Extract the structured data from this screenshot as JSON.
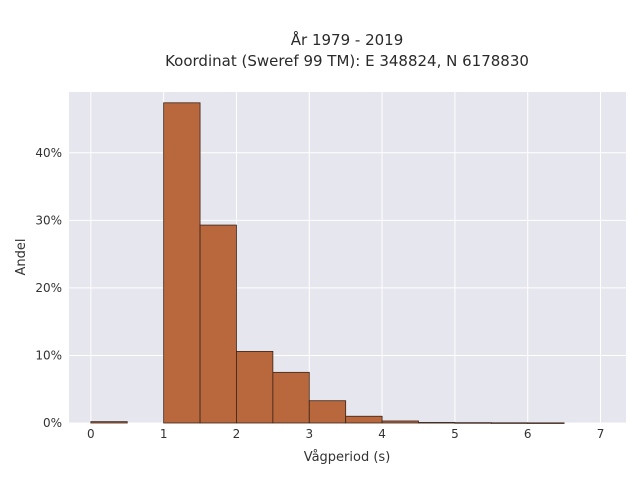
{
  "colors": {
    "plot_background": "#e6e6ee",
    "grid": "#ffffff",
    "bar_fill": "#b9673c",
    "bar_stroke": "#3a2418"
  },
  "chart_data": {
    "type": "bar",
    "title_lines": [
      "År 1979 - 2019",
      "Koordinat (Sweref 99 TM): E 348824, N 6178830"
    ],
    "xlabel": "Vågperiod (s)",
    "ylabel": "Andel",
    "xlim": [
      -0.3,
      7.35
    ],
    "ylim": [
      0,
      0.49
    ],
    "grid": true,
    "x_ticks": [
      0,
      1,
      2,
      3,
      4,
      5,
      6,
      7
    ],
    "y_ticks": [
      0,
      0.1,
      0.2,
      0.3,
      0.4
    ],
    "y_tick_labels": [
      "0%",
      "10%",
      "20%",
      "30%",
      "40%"
    ],
    "bins": [
      {
        "x0": 0.0,
        "x1": 0.5,
        "value": 0.002
      },
      {
        "x0": 0.5,
        "x1": 1.0,
        "value": 0.0
      },
      {
        "x0": 1.0,
        "x1": 1.5,
        "value": 0.474
      },
      {
        "x0": 1.5,
        "x1": 2.0,
        "value": 0.293
      },
      {
        "x0": 2.0,
        "x1": 2.5,
        "value": 0.106
      },
      {
        "x0": 2.5,
        "x1": 3.0,
        "value": 0.075
      },
      {
        "x0": 3.0,
        "x1": 3.5,
        "value": 0.033
      },
      {
        "x0": 3.5,
        "x1": 4.0,
        "value": 0.01
      },
      {
        "x0": 4.0,
        "x1": 4.5,
        "value": 0.003
      },
      {
        "x0": 4.5,
        "x1": 5.0,
        "value": 0.0008
      },
      {
        "x0": 5.0,
        "x1": 5.5,
        "value": 0.0005
      },
      {
        "x0": 5.5,
        "x1": 6.0,
        "value": 0.0003
      },
      {
        "x0": 6.0,
        "x1": 6.5,
        "value": 0.0002
      }
    ]
  }
}
